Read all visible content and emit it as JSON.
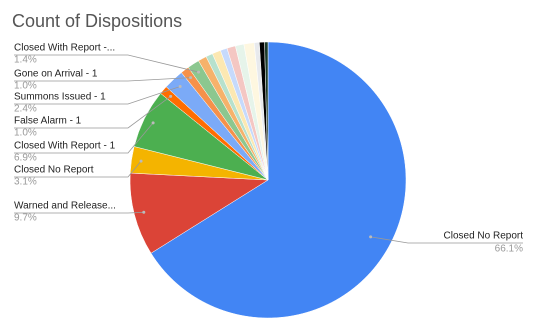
{
  "chart_data": {
    "type": "pie",
    "title": "Count of Dispositions",
    "categories": [
      "Closed No Report",
      "Warned and Release...",
      "Closed No Report",
      "Closed With Report - 1",
      "False Alarm - 1",
      "Summons Issued - 1",
      "Gone on Arrival - 1",
      "Closed With Report -...",
      null,
      null,
      null,
      null,
      null,
      null,
      null,
      null,
      null,
      null
    ],
    "values": [
      66.1,
      9.7,
      3.1,
      6.9,
      1.0,
      2.4,
      1.0,
      1.4,
      1.0,
      0.8,
      1.0,
      0.8,
      1.0,
      1.0,
      1.2,
      0.6,
      0.6,
      0.4
    ],
    "value_labels": [
      "66.1%",
      "9.7%",
      "3.1%",
      "6.9%",
      "1.0%",
      "2.4%",
      "1.0%",
      "1.4%",
      null,
      null,
      null,
      null,
      null,
      null,
      null,
      null,
      null,
      null
    ],
    "colors": [
      "#4285f4",
      "#db4437",
      "#f4b400",
      "#4caf50",
      "#ff6d01",
      "#7baaf7",
      "#f6914a",
      "#8cc78f",
      "#f6b26b",
      "#b7e1cd",
      "#fce8b2",
      "#c6dafc",
      "#f4c7c3",
      "#e6f4ea",
      "#fef7e0",
      "#e8eaed",
      "#000000",
      "#1b3a2a"
    ]
  }
}
